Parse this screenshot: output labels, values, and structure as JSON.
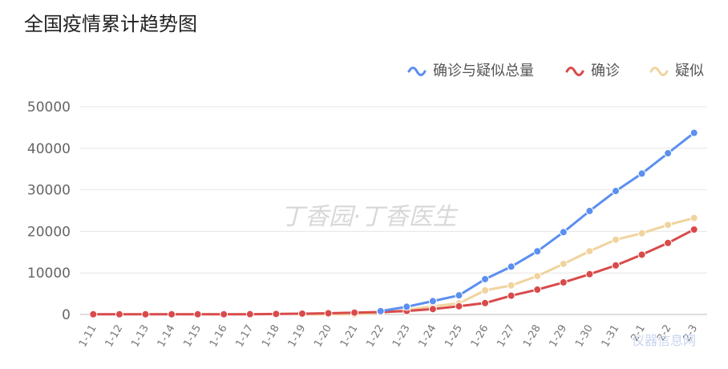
{
  "chart_data": {
    "type": "line",
    "title": "全国疫情累计趋势图",
    "ylim": [
      0,
      50000
    ],
    "yticks": [
      0,
      10000,
      20000,
      30000,
      40000,
      50000
    ],
    "grid": true,
    "legend_position": "top-right",
    "x": [
      "1-11",
      "1-12",
      "1-13",
      "1-14",
      "1-15",
      "1-16",
      "1-17",
      "1-18",
      "1-19",
      "1-20",
      "1-21",
      "1-22",
      "1-23",
      "1-24",
      "1-25",
      "1-26",
      "1-27",
      "1-28",
      "1-29",
      "1-30",
      "1-31",
      "2-1",
      "2-2",
      "2-3"
    ],
    "series": [
      {
        "name": "确诊与疑似总量",
        "color": "#5b8ff0",
        "values": [
          null,
          null,
          null,
          null,
          null,
          null,
          null,
          null,
          null,
          null,
          null,
          800,
          1850,
          3200,
          4600,
          8500,
          11500,
          15200,
          19800,
          24900,
          29700,
          33900,
          38800,
          43700
        ]
      },
      {
        "name": "确诊",
        "color": "#d94a4a",
        "values": [
          41,
          41,
          41,
          41,
          41,
          45,
          62,
          121,
          198,
          291,
          440,
          571,
          830,
          1287,
          1975,
          2744,
          4515,
          5974,
          7711,
          9692,
          11791,
          14380,
          17205,
          20438
        ]
      },
      {
        "name": "疑似",
        "color": "#f0d49e",
        "values": [
          null,
          null,
          null,
          null,
          null,
          null,
          null,
          null,
          0,
          54,
          37,
          393,
          1072,
          1965,
          2684,
          5794,
          6973,
          9239,
          12167,
          15238,
          17988,
          19544,
          21558,
          23214
        ]
      }
    ]
  },
  "watermark": "丁香园·丁香医生",
  "corner_watermark": "仪器信息网"
}
